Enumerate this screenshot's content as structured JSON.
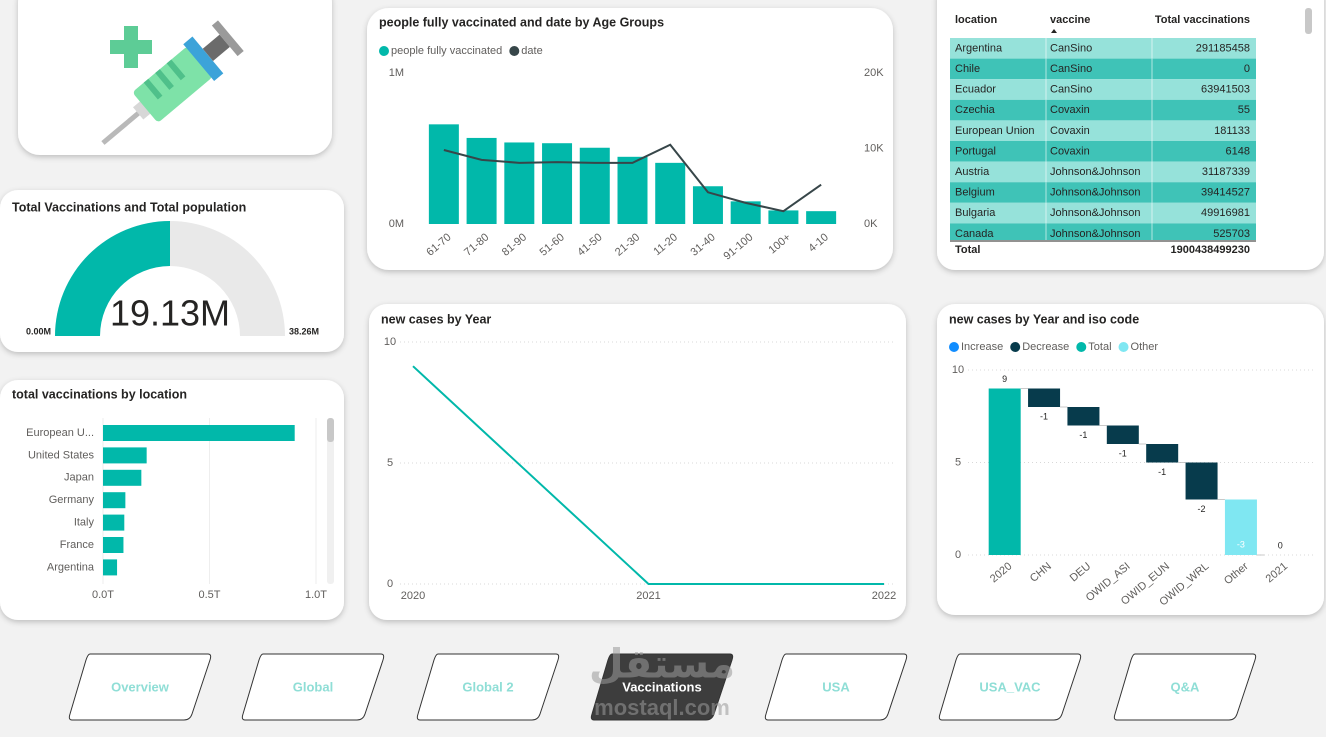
{
  "chart_data": [
    {
      "type": "combo",
      "title": "people fully vaccinated and date by Age Groups",
      "categories": [
        "61-70",
        "71-80",
        "81-90",
        "51-60",
        "41-50",
        "21-30",
        "11-20",
        "31-40",
        "91-100",
        "100+",
        "4-10"
      ],
      "series": [
        {
          "name": "people fully vaccinated",
          "color": "#01b8aa",
          "values": [
            660000,
            570000,
            540000,
            535000,
            505000,
            445000,
            405000,
            250000,
            150000,
            90000,
            85000
          ]
        },
        {
          "name": "date",
          "color": "#374649",
          "axis": "y2",
          "values": [
            9800,
            8500,
            8100,
            8200,
            8100,
            8100,
            10500,
            4200,
            2800,
            1700,
            5200
          ]
        }
      ],
      "ylim": [
        0,
        1000000
      ],
      "yticks": [
        {
          "value": 0,
          "label": "0M"
        },
        {
          "value": 1000000,
          "label": "1M"
        }
      ],
      "y2lim": [
        0,
        20000
      ],
      "y2ticks": [
        {
          "value": 0,
          "label": "0K"
        },
        {
          "value": 10000,
          "label": "10K"
        },
        {
          "value": 20000,
          "label": "20K"
        }
      ],
      "grid": false
    },
    {
      "type": "gauge",
      "title": "Total Vaccinations and Total population",
      "values": [
        19130000
      ],
      "value_labels": [
        "19.13M"
      ],
      "color": "#01b8aa",
      "ylim": [
        0,
        38260000
      ],
      "yticks": [
        {
          "value": 0,
          "label": "0.00M"
        },
        {
          "value": 38260000,
          "label": "38.26M"
        }
      ]
    },
    {
      "type": "hbar",
      "title": "total vaccinations by location",
      "categories": [
        "European U...",
        "United States",
        "Japan",
        "Germany",
        "Italy",
        "France",
        "Argentina"
      ],
      "values": [
        900000000000,
        205000000000,
        180000000000,
        105000000000,
        100000000000,
        96000000000,
        66000000000
      ],
      "color": "#01b8aa",
      "xlim": [
        0,
        1000000000000
      ],
      "xticks": [
        {
          "value": 0,
          "label": "0.0T"
        },
        {
          "value": 500000000000,
          "label": "0.5T"
        },
        {
          "value": 1000000000000,
          "label": "1.0T"
        }
      ],
      "grid": true
    },
    {
      "type": "line",
      "title": "new cases by Year",
      "x": [
        2020,
        2021,
        2022
      ],
      "values": [
        9,
        0,
        0
      ],
      "color": "#01b8aa",
      "xlim": [
        2020,
        2022
      ],
      "xticks": [
        2020,
        2021,
        2022
      ],
      "ylim": [
        0,
        10
      ],
      "yticks": [
        0,
        5,
        10
      ],
      "grid": true
    },
    {
      "type": "waterfall",
      "title": "new cases by Year and iso code",
      "categories": [
        "2020",
        "CHN",
        "DEU",
        "OWID_ASI",
        "OWID_EUN",
        "OWID_WRL",
        "Other",
        "2021"
      ],
      "series": [
        {
          "name": "Increase",
          "color": "#118dff",
          "values": [
            null,
            null,
            null,
            null,
            null,
            null,
            null,
            null
          ]
        },
        {
          "name": "Decrease",
          "color": "#073b4c",
          "values": [
            null,
            -1,
            -1,
            -1,
            -1,
            -2,
            null,
            null
          ]
        },
        {
          "name": "Total",
          "color": "#01b8aa",
          "values": [
            9,
            null,
            null,
            null,
            null,
            null,
            null,
            0
          ]
        },
        {
          "name": "Other",
          "color": "#7fe7f2",
          "values": [
            null,
            null,
            null,
            null,
            null,
            null,
            -3,
            null
          ]
        }
      ],
      "ylim": [
        0,
        10
      ],
      "yticks": [
        0,
        5,
        10
      ],
      "grid": true
    }
  ],
  "table": {
    "columns": [
      "location",
      "vaccine",
      "Total vaccinations"
    ],
    "rows": [
      [
        "Argentina",
        "CanSino",
        291185458
      ],
      [
        "Chile",
        "CanSino",
        0
      ],
      [
        "Ecuador",
        "CanSino",
        63941503
      ],
      [
        "Czechia",
        "Covaxin",
        55
      ],
      [
        "European Union",
        "Covaxin",
        181133
      ],
      [
        "Portugal",
        "Covaxin",
        6148
      ],
      [
        "Austria",
        "Johnson&Johnson",
        31187339
      ],
      [
        "Belgium",
        "Johnson&Johnson",
        39414527
      ],
      [
        "Bulgaria",
        "Johnson&Johnson",
        49916981
      ],
      [
        "Canada",
        "Johnson&Johnson",
        525703
      ]
    ],
    "total": {
      "label": "Total",
      "value": 1900438499230
    }
  },
  "nav": {
    "buttons": [
      "Overview",
      "Global",
      "Global 2",
      "Vaccinations",
      "USA",
      "USA_VAC",
      "Q&A"
    ],
    "active": 3
  },
  "watermark": {
    "arabic": "مستقل",
    "latin": "mostaql.com"
  }
}
